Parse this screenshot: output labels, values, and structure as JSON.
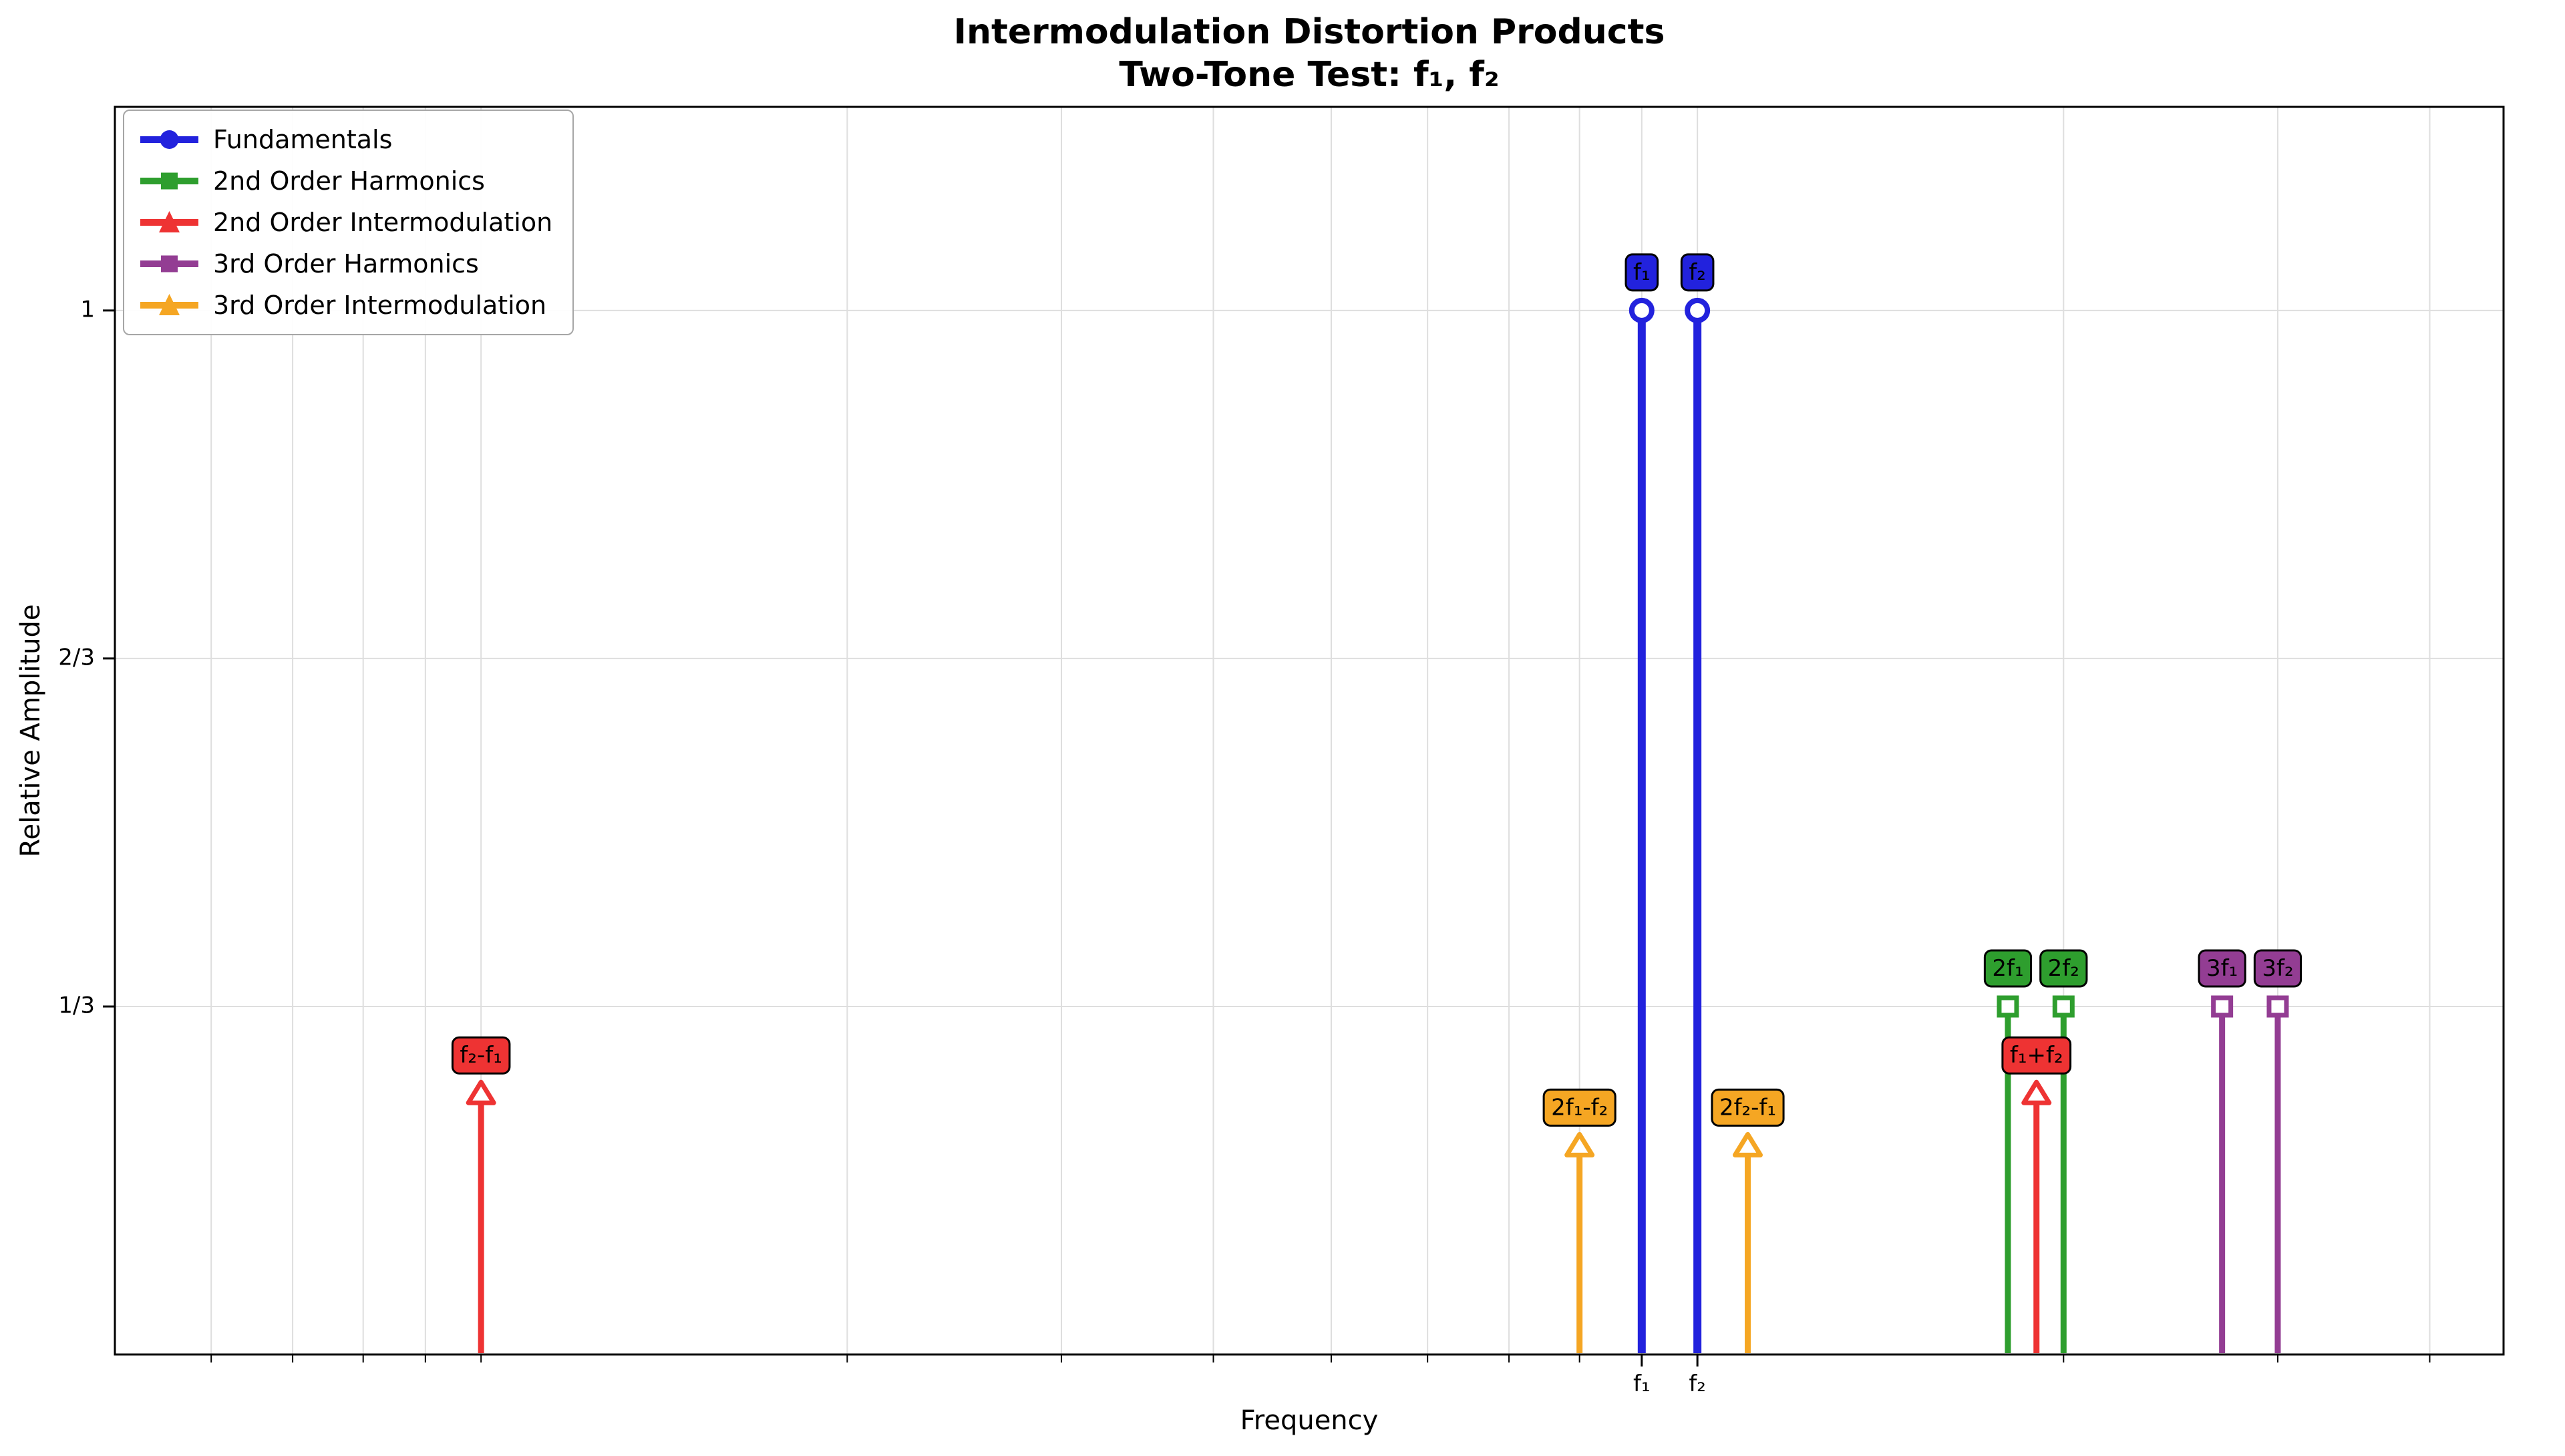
{
  "figure": {
    "title": "Intermodulation Distortion Products",
    "subtitle": "Two-Tone Test: f₁, f₂",
    "xlabel": "Frequency",
    "ylabel": "Relative Amplitude"
  },
  "chart_data": {
    "type": "stem",
    "x_scale": "log",
    "xlim": [
      0.5,
      46
    ],
    "ylim": [
      0,
      1.195
    ],
    "grid": true,
    "legend_position": "upper left",
    "f1": 9,
    "f2": 10,
    "yticks": [
      {
        "value": 0.3333,
        "label": "1/3"
      },
      {
        "value": 0.6667,
        "label": "2/3"
      },
      {
        "value": 1.0,
        "label": "1"
      }
    ],
    "xticks": [
      {
        "value": 9,
        "label": "f₁"
      },
      {
        "value": 10,
        "label": "f₂"
      }
    ],
    "minor_xticks": [
      0.6,
      0.7,
      0.8,
      0.9,
      1,
      2,
      3,
      4,
      5,
      6,
      7,
      8,
      9,
      10,
      20,
      30,
      40
    ],
    "series": [
      {
        "name": "Fundamentals",
        "color": "#2222dd",
        "marker": "circle",
        "points": [
          {
            "f": 9,
            "label": "f₁",
            "amplitude": 1.0
          },
          {
            "f": 10,
            "label": "f₂",
            "amplitude": 1.0
          }
        ]
      },
      {
        "name": "2nd Order Harmonics",
        "color": "#2e9e2e",
        "marker": "square",
        "points": [
          {
            "f": 18,
            "label": "2f₁",
            "amplitude": 0.3333
          },
          {
            "f": 20,
            "label": "2f₂",
            "amplitude": 0.3333
          }
        ]
      },
      {
        "name": "2nd Order Intermodulation",
        "color": "#ee3333",
        "marker": "triangle",
        "points": [
          {
            "f": 1,
            "label": "f₂-f₁",
            "amplitude": 0.25
          },
          {
            "f": 19,
            "label": "f₁+f₂",
            "amplitude": 0.25
          }
        ]
      },
      {
        "name": "3rd Order Harmonics",
        "color": "#933d93",
        "marker": "square",
        "points": [
          {
            "f": 27,
            "label": "3f₁",
            "amplitude": 0.3333
          },
          {
            "f": 30,
            "label": "3f₂",
            "amplitude": 0.3333
          }
        ]
      },
      {
        "name": "3rd Order Intermodulation",
        "color": "#f5a623",
        "marker": "triangle",
        "points": [
          {
            "f": 8,
            "label": "2f₁-f₂",
            "amplitude": 0.2
          },
          {
            "f": 11,
            "label": "2f₂-f₁",
            "amplitude": 0.2
          }
        ]
      }
    ]
  }
}
